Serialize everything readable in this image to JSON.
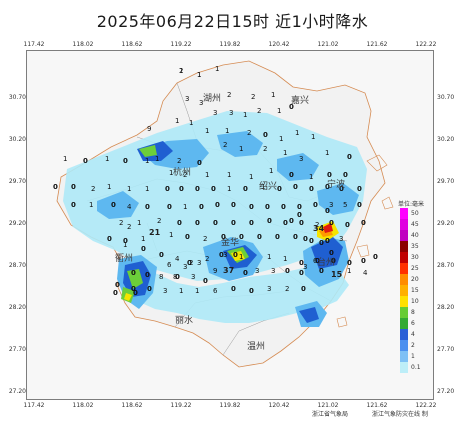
{
  "title": "2025年06月22日15时  近1小时降水",
  "x_ticks": [
    "117.42",
    "118.02",
    "118.62",
    "119.22",
    "119.82",
    "120.42",
    "121.02",
    "121.62",
    "122.22"
  ],
  "y_ticks": [
    "30.70",
    "30.20",
    "29.70",
    "29.20",
    "28.70",
    "28.20",
    "27.70",
    "27.20"
  ],
  "cities": [
    {
      "name": "湖州"
    },
    {
      "name": "嘉兴"
    },
    {
      "name": "杭州"
    },
    {
      "name": "绍兴"
    },
    {
      "name": "宁波"
    },
    {
      "name": "金华"
    },
    {
      "name": "衢州"
    },
    {
      "name": "丽水"
    },
    {
      "name": "台州"
    },
    {
      "name": "温州"
    }
  ],
  "legend": {
    "title": "单位:毫米",
    "items": [
      {
        "label": "50",
        "color": "#ff00ff"
      },
      {
        "label": "45",
        "color": "#e000e0"
      },
      {
        "label": "40",
        "color": "#c000c0"
      },
      {
        "label": "35",
        "color": "#8b0000"
      },
      {
        "label": "30",
        "color": "#c00000"
      },
      {
        "label": "25",
        "color": "#ff3000"
      },
      {
        "label": "20",
        "color": "#ff8c00"
      },
      {
        "label": "15",
        "color": "#ffb000"
      },
      {
        "label": "10",
        "color": "#ffe000"
      },
      {
        "label": "8",
        "color": "#66cc33"
      },
      {
        "label": "6",
        "color": "#33aa33"
      },
      {
        "label": "4",
        "color": "#2a5fd6"
      },
      {
        "label": "2",
        "color": "#4a8fef"
      },
      {
        "label": "1",
        "color": "#7ec0f5"
      },
      {
        "label": "0.1",
        "color": "#bdeef8"
      }
    ]
  },
  "credit": {
    "left": "浙江省气象局",
    "right": "浙江气象防灾在线 制"
  },
  "colors": {
    "light": "#aee9f7",
    "mid": "#5eb8f0",
    "dark": "#1f5fd1",
    "green": "#6cce3a",
    "yellow": "#f5e400",
    "orange": "#ff9a00",
    "red": "#e01a10",
    "darkred": "#a00000"
  },
  "station_values": [
    "1",
    "1",
    "1",
    "3",
    "3",
    "2",
    "2",
    "1",
    "3",
    "3",
    "1",
    "2",
    "1",
    "0",
    "1",
    "1",
    "9",
    "1",
    "1",
    "2",
    "0",
    "1",
    "1",
    "1",
    "2",
    "1",
    "2",
    "1",
    "3",
    "1",
    "0",
    "1",
    "2",
    "0",
    "1",
    "0",
    "1",
    "0",
    "1",
    "1",
    "2",
    "1",
    "1",
    "1",
    "1",
    "0",
    "1",
    "0",
    "0",
    "0",
    "0",
    "2",
    "1",
    "1",
    "1",
    "0",
    "0",
    "0",
    "0",
    "1",
    "0",
    "1",
    "0",
    "0",
    "0",
    "0",
    "0",
    "0",
    "0",
    "1",
    "0",
    "4",
    "0",
    "0",
    "1",
    "0",
    "0",
    "0",
    "0",
    "0",
    "0",
    "0",
    "0",
    "3",
    "5",
    "0",
    "2",
    "1",
    "2",
    "0",
    "0",
    "0",
    "0",
    "0",
    "0",
    "0",
    "0",
    "2",
    "0",
    "0",
    "0",
    "0",
    "0",
    "1",
    "0",
    "0",
    "2",
    "21",
    "1",
    "0",
    "2",
    "0",
    "0",
    "0",
    "0",
    "0",
    "0",
    "0",
    "0",
    "0",
    "0",
    "34",
    "3",
    "1",
    "0",
    "0",
    "4",
    "2",
    "2",
    "0",
    "1",
    "1",
    "1",
    "0",
    "0",
    "0",
    "0",
    "0",
    "0",
    "0",
    "6",
    "6",
    "3",
    "3",
    "0",
    "9",
    "37",
    "0",
    "3",
    "3",
    "0",
    "0",
    "0",
    "0",
    "8",
    "0",
    "3",
    "3",
    "0",
    "15",
    "1",
    "4",
    "0",
    "0",
    "0",
    "3",
    "1",
    "1",
    "6",
    "0",
    "0",
    "3",
    "2",
    "0",
    "0",
    "0",
    "8",
    "0",
    "3",
    "0",
    "2",
    "1"
  ]
}
